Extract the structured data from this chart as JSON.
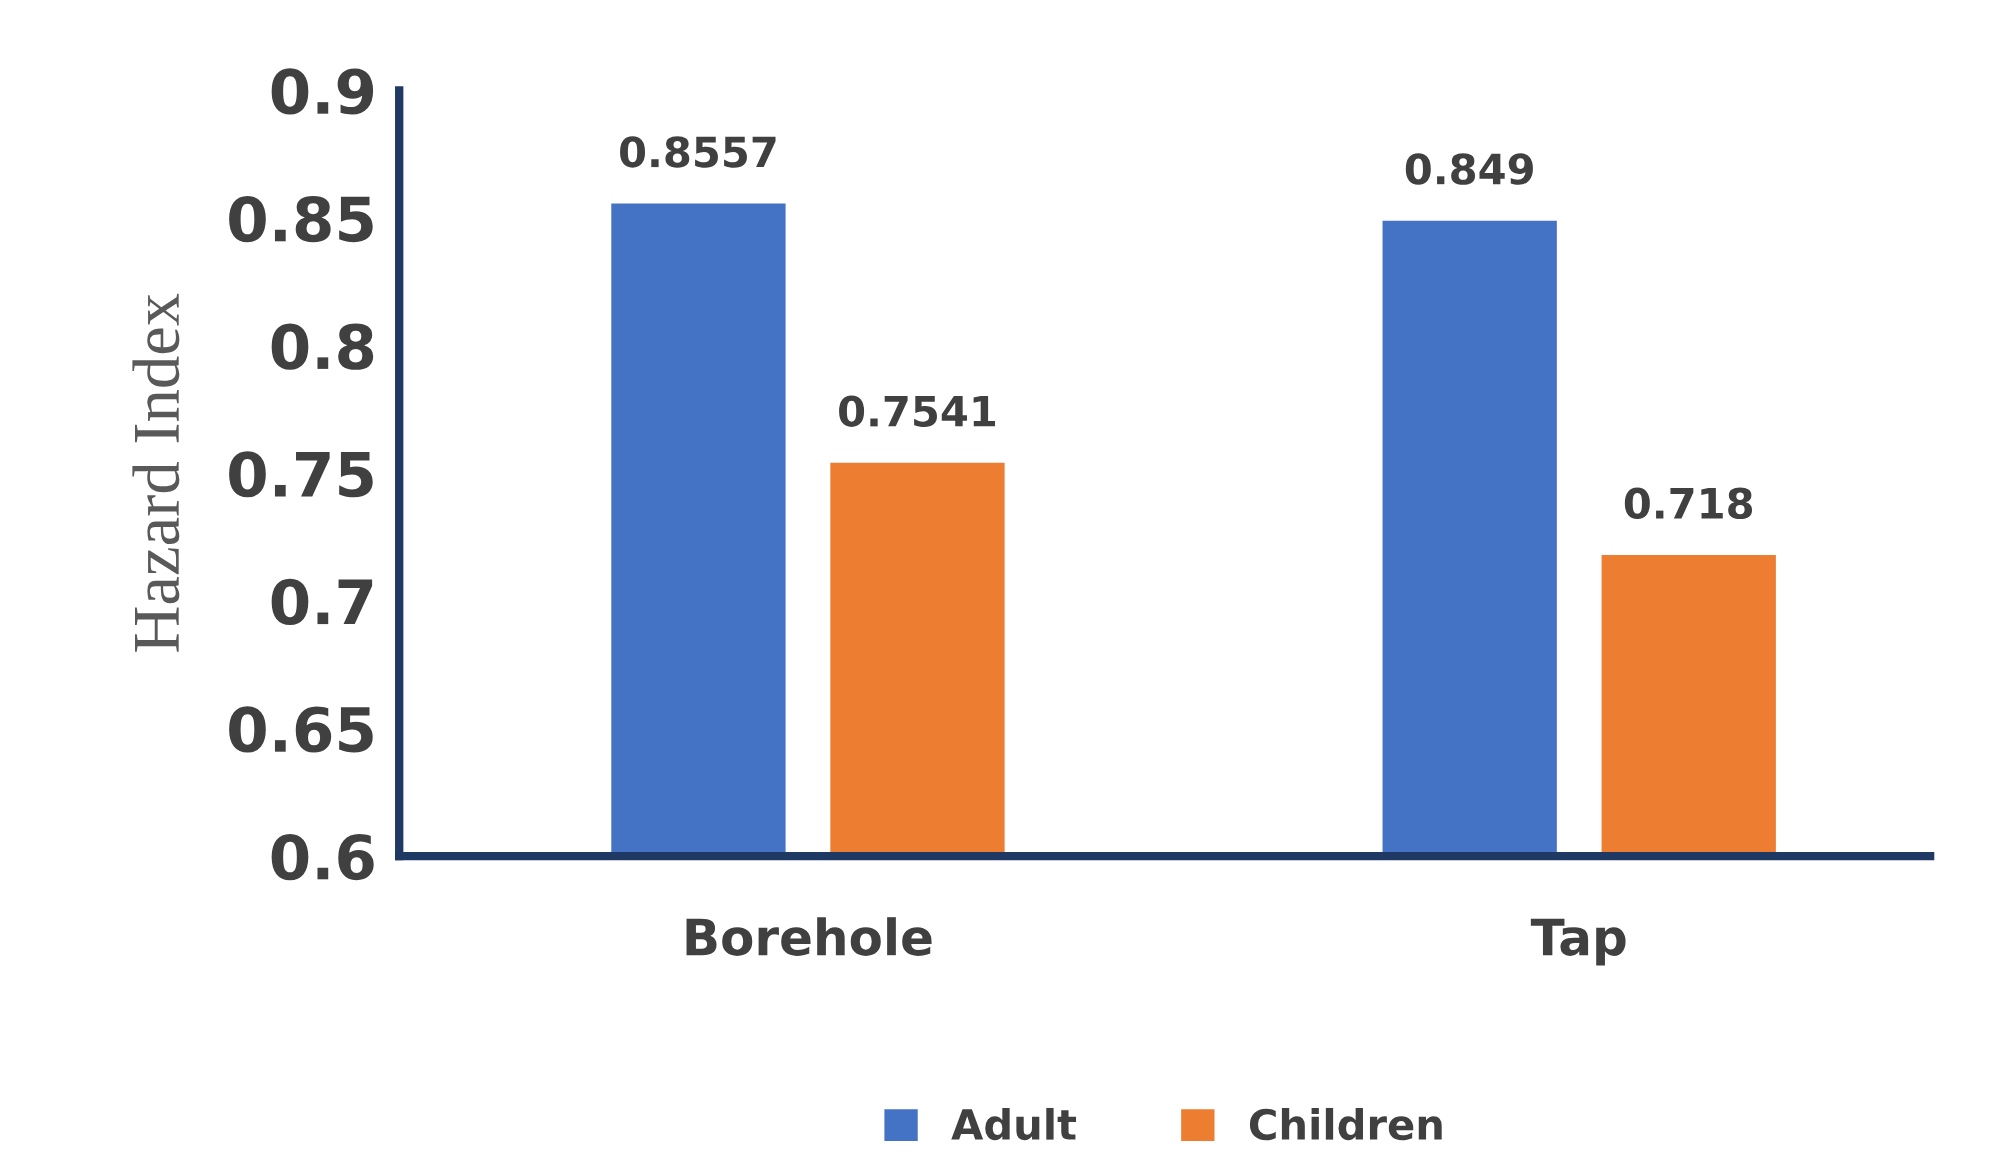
{
  "chart_data": {
    "type": "bar",
    "ylabel": "Hazard Index",
    "categories": [
      "Borehole",
      "Tap"
    ],
    "series": [
      {
        "name": "Adult",
        "color": "#4472c4",
        "values": [
          0.8557,
          0.849
        ]
      },
      {
        "name": "Children",
        "color": "#ed7d31",
        "values": [
          0.7541,
          0.718
        ]
      }
    ],
    "ylim": [
      0.6,
      0.9
    ],
    "yticks": [
      0.6,
      0.65,
      0.7,
      0.75,
      0.8,
      0.85,
      0.9
    ],
    "data_labels": true,
    "grid": false,
    "legend": "bottom"
  }
}
